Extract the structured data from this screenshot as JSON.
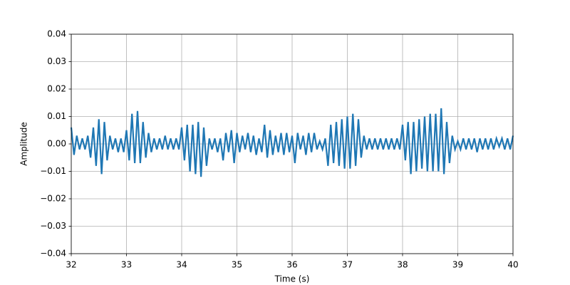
{
  "chart_data": {
    "type": "line",
    "x_label": "Time (s)",
    "y_label": "Amplitude",
    "x": [
      32.0,
      32.05,
      32.1,
      32.15,
      32.2,
      32.25,
      32.3,
      32.35,
      32.4,
      32.45,
      32.5,
      32.55,
      32.6,
      32.65,
      32.7,
      32.75,
      32.8,
      32.85,
      32.9,
      32.95,
      33.0,
      33.05,
      33.1,
      33.15,
      33.2,
      33.25,
      33.3,
      33.35,
      33.4,
      33.45,
      33.5,
      33.55,
      33.6,
      33.65,
      33.7,
      33.75,
      33.8,
      33.85,
      33.9,
      33.95,
      34.0,
      34.05,
      34.1,
      34.15,
      34.2,
      34.25,
      34.3,
      34.35,
      34.4,
      34.45,
      34.5,
      34.55,
      34.6,
      34.65,
      34.7,
      34.75,
      34.8,
      34.85,
      34.9,
      34.95,
      35.0,
      35.05,
      35.1,
      35.15,
      35.2,
      35.25,
      35.3,
      35.35,
      35.4,
      35.45,
      35.5,
      35.55,
      35.6,
      35.65,
      35.7,
      35.75,
      35.8,
      35.85,
      35.9,
      35.95,
      36.0,
      36.05,
      36.1,
      36.15,
      36.2,
      36.25,
      36.3,
      36.35,
      36.4,
      36.45,
      36.5,
      36.55,
      36.6,
      36.65,
      36.7,
      36.75,
      36.8,
      36.85,
      36.9,
      36.95,
      37.0,
      37.05,
      37.1,
      37.15,
      37.2,
      37.25,
      37.3,
      37.35,
      37.4,
      37.45,
      37.5,
      37.55,
      37.6,
      37.65,
      37.7,
      37.75,
      37.8,
      37.85,
      37.9,
      37.95,
      38.0,
      38.05,
      38.1,
      38.15,
      38.2,
      38.25,
      38.3,
      38.35,
      38.4,
      38.45,
      38.5,
      38.55,
      38.6,
      38.65,
      38.7,
      38.75,
      38.8,
      38.85,
      38.9,
      38.95,
      39.0,
      39.05,
      39.1,
      39.15,
      39.2,
      39.25,
      39.3,
      39.35,
      39.4,
      39.45,
      39.5,
      39.55,
      39.6,
      39.65,
      39.7,
      39.75,
      39.8,
      39.85,
      39.9,
      39.95,
      40.0
    ],
    "series": [
      {
        "color": "#1f77b4",
        "values": [
          0.006,
          -0.004,
          0.003,
          -0.002,
          0.002,
          -0.002,
          0.003,
          -0.005,
          0.006,
          -0.008,
          0.009,
          -0.011,
          0.008,
          -0.006,
          0.003,
          -0.002,
          0.002,
          -0.003,
          0.002,
          -0.003,
          0.005,
          -0.006,
          0.011,
          -0.007,
          0.012,
          -0.007,
          0.008,
          -0.005,
          0.004,
          -0.003,
          0.002,
          -0.002,
          0.002,
          -0.002,
          0.003,
          -0.002,
          0.002,
          -0.002,
          0.002,
          -0.002,
          0.006,
          -0.006,
          0.007,
          -0.01,
          0.007,
          -0.011,
          0.008,
          -0.012,
          0.006,
          -0.008,
          0.002,
          -0.002,
          0.002,
          -0.003,
          0.002,
          -0.006,
          0.004,
          -0.003,
          0.005,
          -0.007,
          0.004,
          -0.003,
          0.003,
          -0.002,
          0.004,
          -0.003,
          0.003,
          -0.004,
          0.002,
          -0.003,
          0.007,
          -0.005,
          0.005,
          -0.004,
          0.003,
          -0.003,
          0.004,
          -0.004,
          0.004,
          -0.003,
          0.003,
          -0.007,
          0.004,
          -0.002,
          0.003,
          -0.004,
          0.004,
          -0.003,
          0.004,
          -0.002,
          0.001,
          -0.002,
          0.002,
          -0.008,
          0.007,
          -0.007,
          0.008,
          -0.008,
          0.009,
          -0.009,
          0.01,
          -0.009,
          0.011,
          -0.008,
          0.009,
          -0.005,
          0.003,
          -0.002,
          0.002,
          -0.002,
          0.002,
          -0.002,
          0.002,
          -0.002,
          0.002,
          -0.002,
          0.002,
          -0.002,
          0.002,
          -0.002,
          0.007,
          -0.006,
          0.008,
          -0.011,
          0.008,
          -0.01,
          0.009,
          -0.009,
          0.01,
          -0.01,
          0.011,
          -0.01,
          0.011,
          -0.01,
          0.013,
          -0.011,
          0.008,
          -0.007,
          0.003,
          -0.002,
          0.001,
          -0.002,
          0.002,
          -0.002,
          0.002,
          -0.002,
          0.002,
          -0.003,
          0.002,
          -0.002,
          0.002,
          -0.002,
          0.002,
          -0.002,
          0.002,
          -0.001,
          0.002,
          -0.002,
          0.002,
          -0.002,
          0.003
        ]
      }
    ],
    "xlim": [
      32,
      40
    ],
    "xticks": [
      32,
      33,
      34,
      35,
      36,
      37,
      38,
      39,
      40
    ],
    "ylim": [
      -0.04,
      0.04
    ],
    "yticks": [
      {
        "value": -0.04,
        "label": "−0.04"
      },
      {
        "value": -0.03,
        "label": "−0.03"
      },
      {
        "value": -0.02,
        "label": "−0.02"
      },
      {
        "value": -0.01,
        "label": "−0.01"
      },
      {
        "value": 0,
        "label": "0.00"
      },
      0.01,
      0.02,
      0.03,
      0.04
    ],
    "grid": true
  }
}
